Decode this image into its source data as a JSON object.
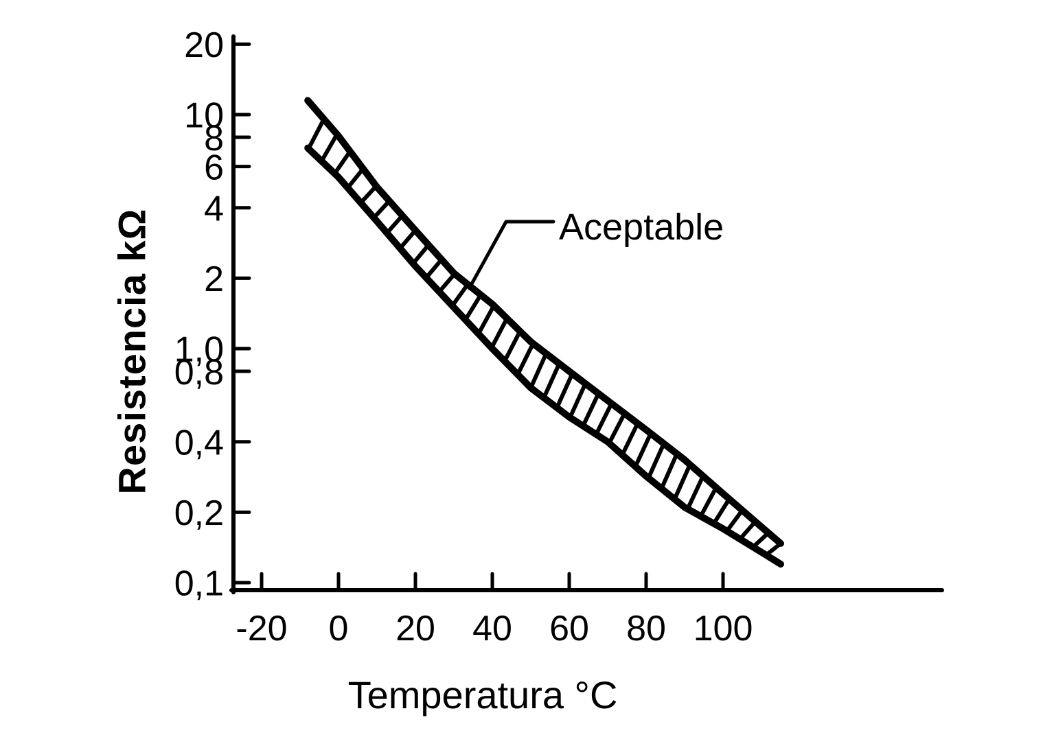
{
  "figure": {
    "background": "#ffffff",
    "ink_color": "#000000"
  },
  "chart_data": {
    "type": "line",
    "title": "",
    "xlabel": "Temperatura °C",
    "ylabel": "Resistencia kΩ",
    "x_scale": "linear",
    "y_scale": "log",
    "xlim": [
      -27,
      157
    ],
    "ylim": [
      0.1,
      22
    ],
    "grid": false,
    "legend_position": "none",
    "x_ticks": [
      {
        "label": "-20",
        "value": -20
      },
      {
        "label": "0",
        "value": 0
      },
      {
        "label": "20",
        "value": 20
      },
      {
        "label": "40",
        "value": 40
      },
      {
        "label": "60",
        "value": 60
      },
      {
        "label": "80",
        "value": 80
      },
      {
        "label": "100",
        "value": 100
      }
    ],
    "y_ticks": [
      {
        "label": "20",
        "value": 20
      },
      {
        "label": "10",
        "value": 10
      },
      {
        "label": "8",
        "value": 8
      },
      {
        "label": "6",
        "value": 6
      },
      {
        "label": "4",
        "value": 4
      },
      {
        "label": "2",
        "value": 2
      },
      {
        "label": "1,0",
        "value": 1.0
      },
      {
        "label": "0,8",
        "value": 0.8
      },
      {
        "label": "0,4",
        "value": 0.4
      },
      {
        "label": "0,2",
        "value": 0.2
      },
      {
        "label": "0,1",
        "value": 0.1
      }
    ],
    "annotation": {
      "label": "Aceptable"
    },
    "band": {
      "label": "Aceptable",
      "style": "hatched",
      "temperatures_c": [
        -8,
        0,
        10,
        20,
        30,
        40,
        50,
        60,
        70,
        80,
        90,
        100,
        110,
        115
      ],
      "upper_k_ohm": [
        11.5,
        8.1,
        4.9,
        3.2,
        2.1,
        1.55,
        1.07,
        0.8,
        0.6,
        0.45,
        0.335,
        0.24,
        0.173,
        0.147
      ],
      "lower_k_ohm": [
        7.2,
        5.4,
        3.5,
        2.25,
        1.5,
        1.0,
        0.68,
        0.51,
        0.4,
        0.285,
        0.21,
        0.17,
        0.135,
        0.12
      ]
    }
  }
}
